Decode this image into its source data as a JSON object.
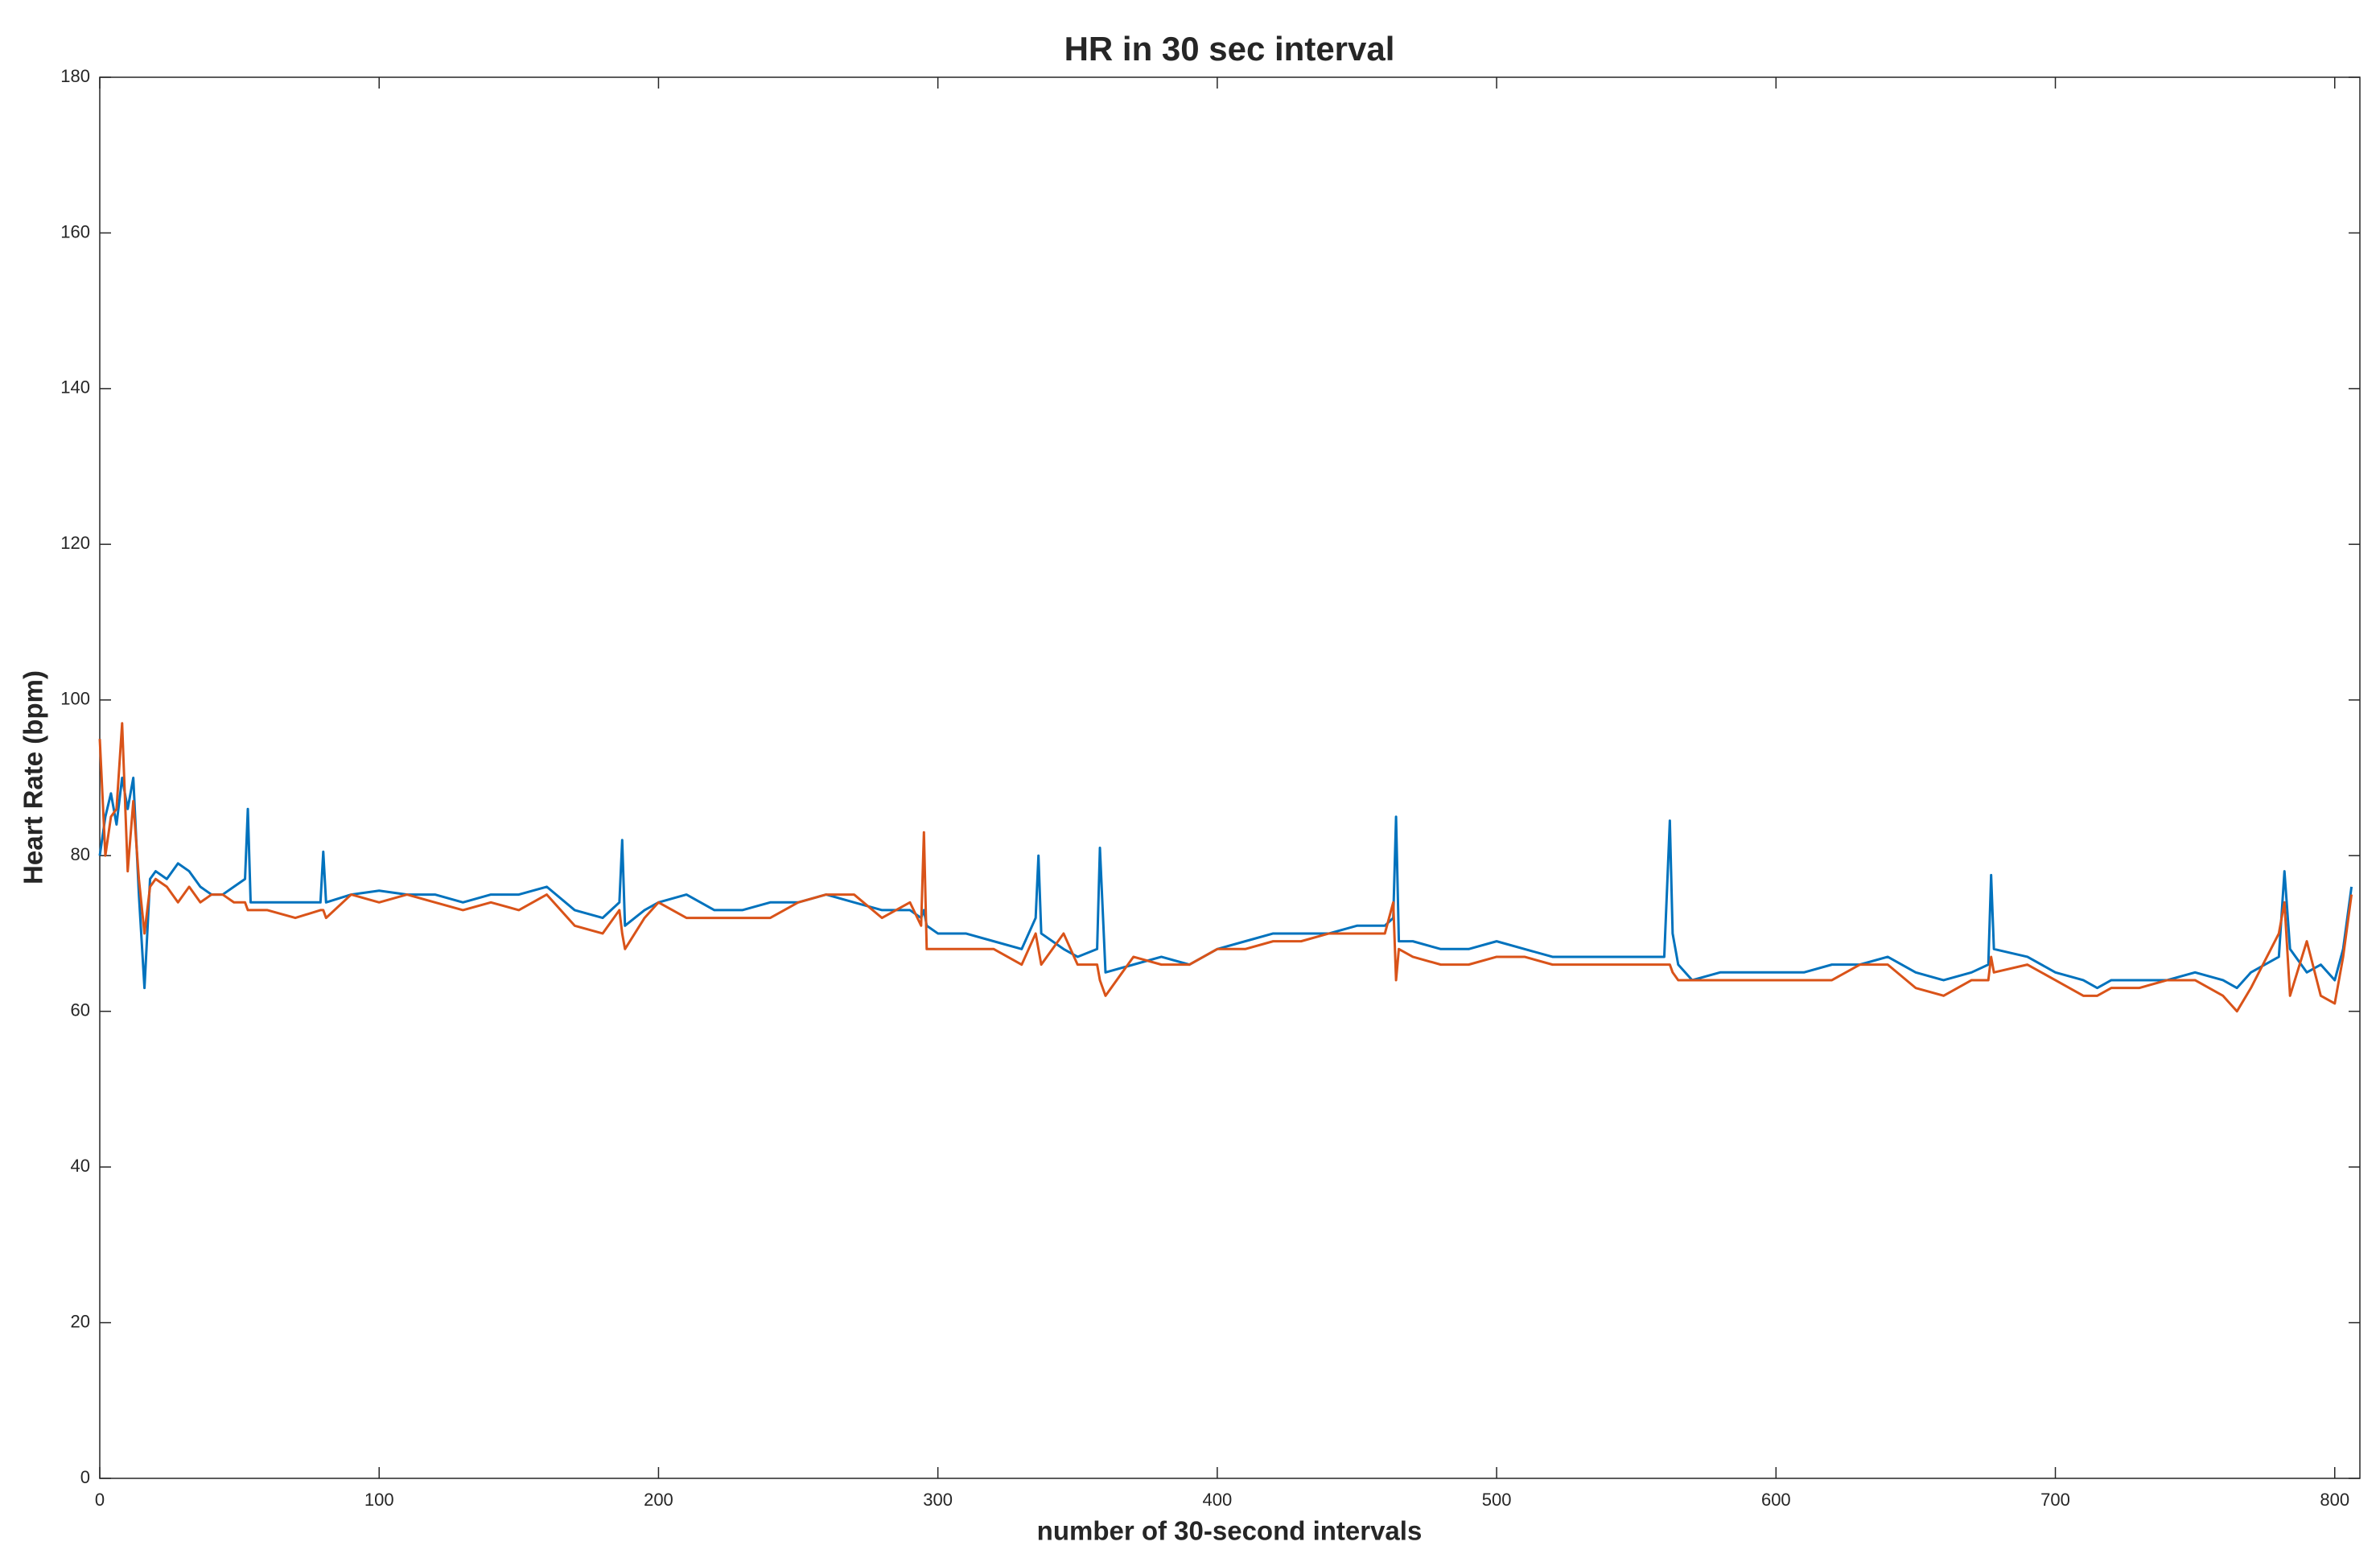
{
  "chart_data": {
    "type": "line",
    "title": "HR in 30 sec interval",
    "x_label": "number of 30-second intervals",
    "y_label": "Heart Rate (bpm)",
    "xlim": [
      0,
      809
    ],
    "ylim": [
      0,
      180
    ],
    "xticks": [
      0,
      100,
      200,
      300,
      400,
      500,
      600,
      700,
      800
    ],
    "yticks": [
      0,
      20,
      40,
      60,
      80,
      100,
      120,
      140,
      160,
      180
    ],
    "grid": false,
    "x": [
      0,
      2,
      4,
      6,
      8,
      10,
      12,
      14,
      16,
      18,
      20,
      24,
      28,
      32,
      36,
      40,
      44,
      48,
      52,
      53,
      54,
      60,
      70,
      79,
      80,
      81,
      90,
      100,
      110,
      120,
      130,
      140,
      150,
      160,
      170,
      180,
      186,
      187,
      188,
      195,
      200,
      210,
      220,
      230,
      240,
      250,
      260,
      270,
      280,
      290,
      294,
      295,
      296,
      300,
      310,
      320,
      330,
      335,
      336,
      337,
      345,
      350,
      357,
      358,
      360,
      370,
      380,
      390,
      400,
      410,
      420,
      430,
      440,
      450,
      460,
      463,
      464,
      465,
      470,
      480,
      490,
      500,
      510,
      520,
      530,
      540,
      550,
      560,
      562,
      563,
      565,
      570,
      580,
      590,
      600,
      610,
      620,
      630,
      640,
      650,
      660,
      670,
      676,
      677,
      678,
      690,
      700,
      710,
      715,
      720,
      730,
      740,
      750,
      760,
      765,
      770,
      780,
      782,
      784,
      790,
      795,
      800,
      803,
      806
    ],
    "series": [
      {
        "color": "#0072BD",
        "values": [
          80,
          85,
          88,
          84,
          90,
          86,
          90,
          75,
          63,
          77,
          78,
          77,
          79,
          78,
          76,
          75,
          75,
          76,
          77,
          86,
          74,
          74,
          74,
          74,
          80.5,
          74,
          75,
          75.5,
          75,
          75,
          74,
          75,
          75,
          76,
          73,
          72,
          74,
          82,
          71,
          73,
          74,
          75,
          73,
          73,
          74,
          74,
          75,
          74,
          73,
          73,
          72,
          73,
          71,
          70,
          70,
          69,
          68,
          72,
          80,
          70,
          68,
          67,
          68,
          81,
          65,
          66,
          67,
          66,
          68,
          69,
          70,
          70,
          70,
          71,
          71,
          72,
          85,
          69,
          69,
          68,
          68,
          69,
          68,
          67,
          67,
          67,
          67,
          67,
          84.5,
          70,
          66,
          64,
          65,
          65,
          65,
          65,
          66,
          66,
          67,
          65,
          64,
          65,
          66,
          77.5,
          68,
          67,
          65,
          64,
          63,
          64,
          64,
          64,
          65,
          64,
          63,
          65,
          67,
          78,
          68,
          65,
          66,
          64,
          68,
          76
        ]
      },
      {
        "color": "#D95319",
        "values": [
          95,
          80,
          85,
          86,
          97,
          78,
          87,
          77,
          70,
          76,
          77,
          76,
          74,
          76,
          74,
          75,
          75,
          74,
          74,
          73,
          73,
          73,
          72,
          73,
          73,
          72,
          75,
          74,
          75,
          74,
          73,
          74,
          73,
          75,
          71,
          70,
          73,
          70,
          68,
          72,
          74,
          72,
          72,
          72,
          72,
          74,
          75,
          75,
          72,
          74,
          71,
          83,
          68,
          68,
          68,
          68,
          66,
          70,
          68,
          66,
          70,
          66,
          66,
          64,
          62,
          67,
          66,
          66,
          68,
          68,
          69,
          69,
          70,
          70,
          70,
          74,
          64,
          68,
          67,
          66,
          66,
          67,
          67,
          66,
          66,
          66,
          66,
          66,
          66,
          65,
          64,
          64,
          64,
          64,
          64,
          64,
          64,
          66,
          66,
          63,
          62,
          64,
          64,
          67,
          65,
          66,
          64,
          62,
          62,
          63,
          63,
          64,
          64,
          62,
          60,
          63,
          70,
          74,
          62,
          69,
          62,
          61,
          67,
          75
        ]
      }
    ]
  }
}
